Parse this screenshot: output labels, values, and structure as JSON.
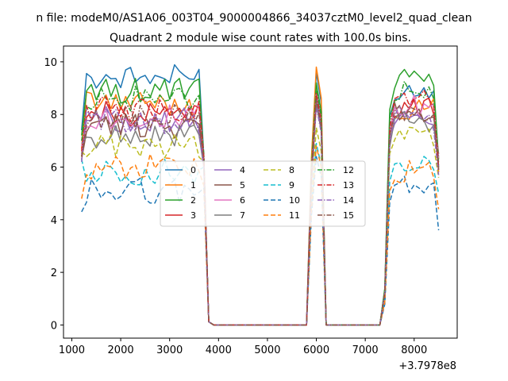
{
  "figure": {
    "suptitle": "n file: modeM0/AS1A06_003T04_9000004866_34037cztM0_level2_quad_clean",
    "title": "Quadrant 2 module wise count rates with 100.0s bins.",
    "x_offset_label": "+3.7978e8"
  },
  "chart_data": {
    "type": "line",
    "title": "Quadrant 2 module wise count rates with 100.0s bins.",
    "xlabel": "",
    "ylabel": "",
    "x_offset": 379780000,
    "xlim": [
      830,
      8880
    ],
    "ylim": [
      -0.5,
      10.6
    ],
    "xticks": [
      1000,
      2000,
      3000,
      4000,
      5000,
      6000,
      7000,
      8000
    ],
    "xtick_labels": [
      "1000",
      "2000",
      "3000",
      "4000",
      "5000",
      "6000",
      "7000",
      "8000"
    ],
    "yticks": [
      0,
      2,
      4,
      6,
      8,
      10
    ],
    "ytick_labels": [
      "0",
      "2",
      "4",
      "6",
      "8",
      "10"
    ],
    "grid": false,
    "legend": {
      "placement": "center",
      "columns": 4
    },
    "x_segments": [
      {
        "start": 1200,
        "end": 3700,
        "kind": "plateau"
      },
      {
        "start": 3700,
        "end": 5800,
        "kind": "off"
      },
      {
        "start": 5800,
        "end": 6200,
        "kind": "peak"
      },
      {
        "start": 6200,
        "end": 7300,
        "kind": "off"
      },
      {
        "start": 7300,
        "end": 8500,
        "kind": "plateau"
      }
    ],
    "series": [
      {
        "name": "0",
        "color": "#1f77b4",
        "dash": "solid",
        "level": 9.4,
        "start": 7.4,
        "end": 6.4,
        "peak": 9.6,
        "level2": 9.0,
        "lastA": 8.9,
        "lastB": 6.0
      },
      {
        "name": "1",
        "color": "#ff7f0e",
        "dash": "solid",
        "level": 8.4,
        "start": 6.7,
        "end": 6.3,
        "peak": 9.8,
        "level2": 8.2,
        "lastA": 8.6,
        "lastB": 5.8
      },
      {
        "name": "2",
        "color": "#2ca02c",
        "dash": "solid",
        "level": 8.9,
        "start": 7.2,
        "end": 6.2,
        "peak": 9.2,
        "level2": 9.3,
        "lastA": 9.1,
        "lastB": 6.3
      },
      {
        "name": "3",
        "color": "#d62728",
        "dash": "solid",
        "level": 8.0,
        "start": 6.4,
        "end": 6.1,
        "peak": 8.7,
        "level2": 8.3,
        "lastA": 8.0,
        "lastB": 5.9
      },
      {
        "name": "4",
        "color": "#9467bd",
        "dash": "solid",
        "level": 7.8,
        "start": 6.5,
        "end": 6.0,
        "peak": 8.6,
        "level2": 8.0,
        "lastA": 7.6,
        "lastB": 6.4
      },
      {
        "name": "5",
        "color": "#8c564b",
        "dash": "solid",
        "level": 7.6,
        "start": 6.3,
        "end": 6.1,
        "peak": 8.4,
        "level2": 8.1,
        "lastA": 7.9,
        "lastB": 6.5
      },
      {
        "name": "6",
        "color": "#e377c2",
        "dash": "solid",
        "level": 7.9,
        "start": 6.8,
        "end": 6.3,
        "peak": 8.9,
        "level2": 8.3,
        "lastA": 8.4,
        "lastB": 6.2
      },
      {
        "name": "7",
        "color": "#7f7f7f",
        "dash": "solid",
        "level": 7.2,
        "start": 6.9,
        "end": 6.0,
        "peak": 8.5,
        "level2": 7.7,
        "lastA": 7.6,
        "lastB": 6.0
      },
      {
        "name": "8",
        "color": "#bcbd22",
        "dash": "dashed",
        "level": 6.8,
        "start": 6.6,
        "end": 6.2,
        "peak": 7.5,
        "level2": 7.4,
        "lastA": 6.8,
        "lastB": 5.6
      },
      {
        "name": "9",
        "color": "#17becf",
        "dash": "dashed",
        "level": 5.8,
        "start": 6.3,
        "end": 6.0,
        "peak": 6.9,
        "level2": 6.2,
        "lastA": 5.9,
        "lastB": 5.0
      },
      {
        "name": "10",
        "color": "#1f77b4",
        "dash": "dashed",
        "level": 5.1,
        "start": 4.3,
        "end": 5.2,
        "peak": 6.4,
        "level2": 5.3,
        "lastA": 5.4,
        "lastB": 3.6
      },
      {
        "name": "11",
        "color": "#ff7f0e",
        "dash": "dashed",
        "level": 6.0,
        "start": 4.8,
        "end": 5.3,
        "peak": 6.8,
        "level2": 5.8,
        "lastA": 5.6,
        "lastB": 4.4
      },
      {
        "name": "12",
        "color": "#2ca02c",
        "dash": "dashdot",
        "level": 8.6,
        "start": 7.0,
        "end": 6.5,
        "peak": 9.0,
        "level2": 8.9,
        "lastA": 8.6,
        "lastB": 6.1
      },
      {
        "name": "13",
        "color": "#d62728",
        "dash": "dashdot",
        "level": 8.2,
        "start": 6.6,
        "end": 6.4,
        "peak": 8.8,
        "level2": 8.5,
        "lastA": 8.3,
        "lastB": 6.0
      },
      {
        "name": "14",
        "color": "#9467bd",
        "dash": "dashdot",
        "level": 7.7,
        "start": 6.2,
        "end": 6.0,
        "peak": 8.3,
        "level2": 7.9,
        "lastA": 7.4,
        "lastB": 5.7
      },
      {
        "name": "15",
        "color": "#8c564b",
        "dash": "dashdot",
        "level": 7.9,
        "start": 6.4,
        "end": 6.2,
        "peak": 8.6,
        "level2": 8.2,
        "lastA": 8.0,
        "lastB": 5.9
      }
    ]
  }
}
